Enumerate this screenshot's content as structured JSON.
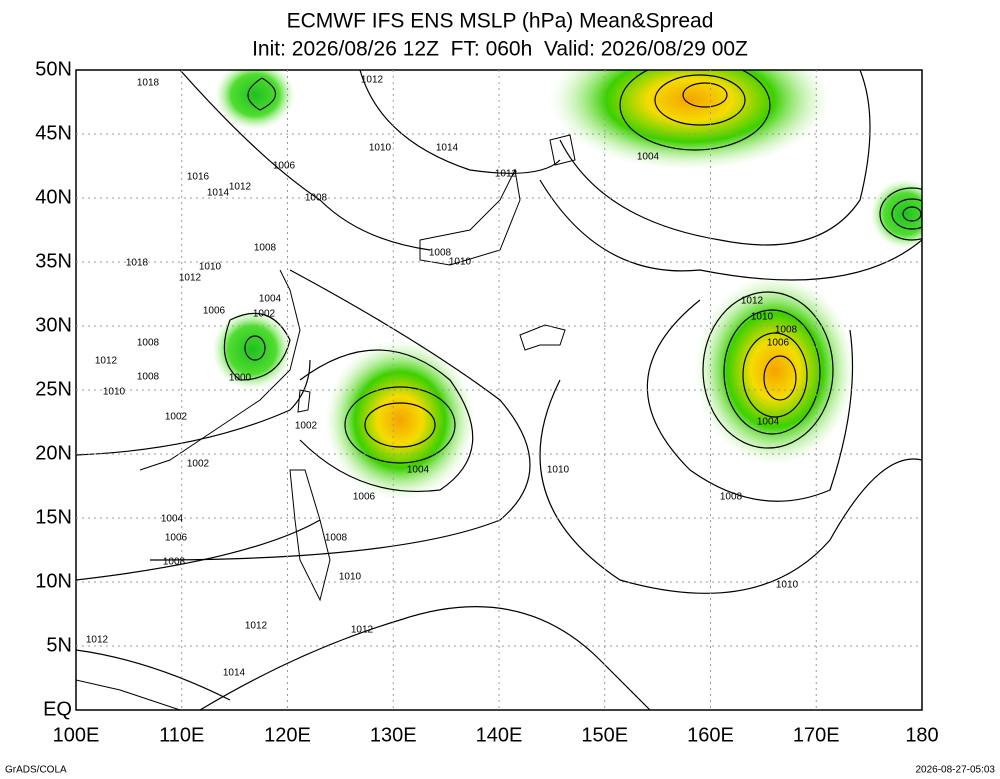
{
  "map": {
    "title": "ECMWF IFS ENS MSLP (hPa) Mean&Spread",
    "subtitle": "Init: 2026/08/26 12Z  FT: 060h  Valid: 2026/08/29 00Z",
    "xlim": [
      100,
      180
    ],
    "ylim": [
      0,
      50
    ],
    "xticks": [
      {
        "value": 100,
        "label": "100E"
      },
      {
        "value": 110,
        "label": "110E"
      },
      {
        "value": 120,
        "label": "120E"
      },
      {
        "value": 130,
        "label": "130E"
      },
      {
        "value": 140,
        "label": "140E"
      },
      {
        "value": 150,
        "label": "150E"
      },
      {
        "value": 160,
        "label": "160E"
      },
      {
        "value": 170,
        "label": "170E"
      },
      {
        "value": 180,
        "label": "180"
      }
    ],
    "yticks": [
      {
        "value": 0,
        "label": "EQ"
      },
      {
        "value": 5,
        "label": "5N"
      },
      {
        "value": 10,
        "label": "10N"
      },
      {
        "value": 15,
        "label": "15N"
      },
      {
        "value": 20,
        "label": "20N"
      },
      {
        "value": 25,
        "label": "25N"
      },
      {
        "value": 30,
        "label": "30N"
      },
      {
        "value": 35,
        "label": "35N"
      },
      {
        "value": 40,
        "label": "40N"
      },
      {
        "value": 45,
        "label": "45N"
      },
      {
        "value": 50,
        "label": "50N"
      }
    ],
    "grid": true,
    "contour_labels": [
      1018,
      1012,
      1010,
      1014,
      1006,
      1016,
      1014,
      1012,
      1008,
      1012,
      1004,
      1008,
      1008,
      1010,
      1018,
      1012,
      1010,
      1004,
      1002,
      1006,
      1012,
      1010,
      1008,
      1006,
      1008,
      1012,
      1008,
      1000,
      1010,
      1002,
      1002,
      1004,
      1004,
      1010,
      1008,
      1006,
      1002,
      1004,
      1006,
      1008,
      1008,
      1010,
      1010,
      1012,
      1012,
      1012,
      1014
    ],
    "footer_left": "GrADS/COLA",
    "footer_right": "2026-08-27-05:03"
  }
}
